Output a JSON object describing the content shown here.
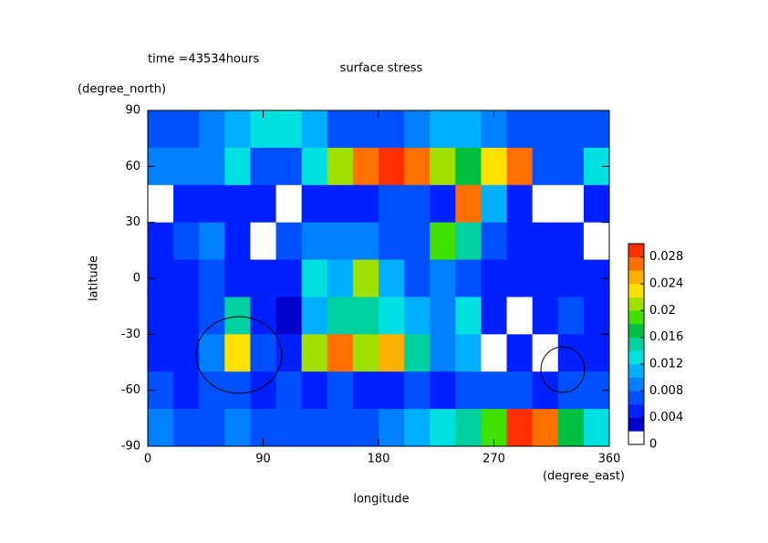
{
  "chart_data": {
    "type": "contour",
    "time_label": "time =43534hours",
    "title": "surface stress",
    "x_label": "longitude",
    "x_unit": "(degree_east)",
    "y_label": "latitude",
    "y_unit": "(degree_north)",
    "xlim": [
      0,
      360
    ],
    "xticks": [
      0,
      90,
      180,
      270,
      360
    ],
    "ylim": [
      -90,
      90
    ],
    "yticks": [
      -90,
      -60,
      -30,
      0,
      30,
      60,
      90
    ],
    "clim": [
      0,
      0.03
    ],
    "cticks": [
      0,
      0.004,
      0.008,
      0.012,
      0.016,
      0.02,
      0.024,
      0.028
    ],
    "colors": [
      "#ffffff",
      "#0000c8",
      "#0020ff",
      "#0050ff",
      "#0080ff",
      "#00b0ff",
      "#00e0e0",
      "#00d0a0",
      "#00c040",
      "#40e000",
      "#a0e000",
      "#ffe000",
      "#ffb000",
      "#ff7000",
      "#ff3000"
    ],
    "x": [
      10,
      30,
      50,
      70,
      90,
      110,
      130,
      150,
      170,
      190,
      210,
      230,
      250,
      270,
      290,
      310,
      330,
      350
    ],
    "y": [
      80,
      60,
      40,
      20,
      0,
      -20,
      -40,
      -60,
      -80
    ],
    "z": [
      [
        0.006,
        0.006,
        0.008,
        0.01,
        0.012,
        0.012,
        0.01,
        0.006,
        0.006,
        0.006,
        0.008,
        0.01,
        0.01,
        0.008,
        0.006,
        0.006,
        0.006,
        0.006
      ],
      [
        0.008,
        0.008,
        0.008,
        0.012,
        0.006,
        0.006,
        0.012,
        0.02,
        0.026,
        0.028,
        0.026,
        0.02,
        0.016,
        0.022,
        0.026,
        0.006,
        0.006,
        0.012
      ],
      [
        0,
        0.004,
        0.004,
        0.004,
        0.004,
        0,
        0.004,
        0.004,
        0.004,
        0.006,
        0.006,
        0.004,
        0.026,
        0.01,
        0.004,
        0,
        0,
        0.004
      ],
      [
        0.004,
        0.006,
        0.008,
        0.004,
        0,
        0.006,
        0.008,
        0.008,
        0.008,
        0.006,
        0.006,
        0.018,
        0.014,
        0.006,
        0.004,
        0.004,
        0.004,
        0
      ],
      [
        0.004,
        0.004,
        0.006,
        0.004,
        0.004,
        0.004,
        0.012,
        0.01,
        0.02,
        0.01,
        0.006,
        0.008,
        0.006,
        0.004,
        0.004,
        0.004,
        0.004,
        0.004
      ],
      [
        0.004,
        0.004,
        0.006,
        0.014,
        0.004,
        0.002,
        0.01,
        0.014,
        0.014,
        0.012,
        0.01,
        0.008,
        0.012,
        0.004,
        0,
        0.004,
        0.006,
        0.004
      ],
      [
        0.004,
        0.004,
        0.008,
        0.022,
        0.006,
        0.004,
        0.02,
        0.026,
        0.02,
        0.024,
        0.014,
        0.008,
        0.01,
        0,
        0.004,
        0,
        0.004,
        0.004
      ],
      [
        0.006,
        0.004,
        0.006,
        0.006,
        0.004,
        0.006,
        0.004,
        0.006,
        0.004,
        0.004,
        0.006,
        0.004,
        0.006,
        0.006,
        0.006,
        0.004,
        0.006,
        0.006
      ],
      [
        0.008,
        0.006,
        0.006,
        0.008,
        0.006,
        0.006,
        0.006,
        0.006,
        0.006,
        0.008,
        0.01,
        0.012,
        0.014,
        0.018,
        0.028,
        0.026,
        0.016,
        0.012
      ]
    ]
  }
}
